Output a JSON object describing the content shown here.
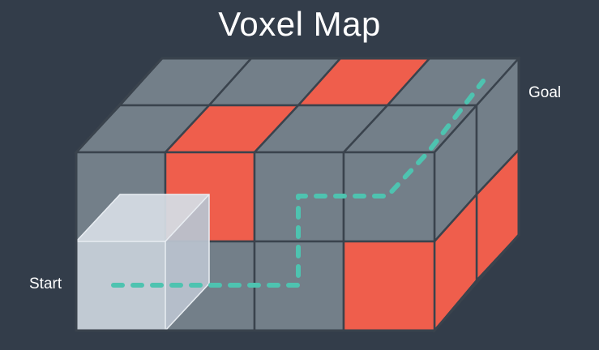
{
  "title": "Voxel Map",
  "labels": {
    "start": "Start",
    "goal": "Goal"
  },
  "colors": {
    "background": "#333d4a",
    "voxel": "#737f89",
    "obstacle": "#ef5e4c",
    "start_voxel": "#c3ccd6",
    "edge": "#3a434d",
    "path": "#4ec3b0"
  },
  "grid": {
    "width": 4,
    "depth": 2,
    "height": 2
  },
  "obstacles": [
    {
      "face": "top",
      "row": "back",
      "col": 3
    },
    {
      "face": "top",
      "row": "front",
      "col": 2
    },
    {
      "face": "front",
      "level": "upper",
      "col": 2
    },
    {
      "face": "front",
      "level": "lower",
      "col": 4
    },
    {
      "face": "side",
      "level": "upper",
      "col": "back"
    },
    {
      "face": "side",
      "level": "lower",
      "col": "front"
    },
    {
      "face": "side",
      "level": "lower",
      "col": "back"
    }
  ],
  "start_voxel": {
    "col": 1,
    "level": "lower",
    "row": "front"
  },
  "path_style": "dashed"
}
